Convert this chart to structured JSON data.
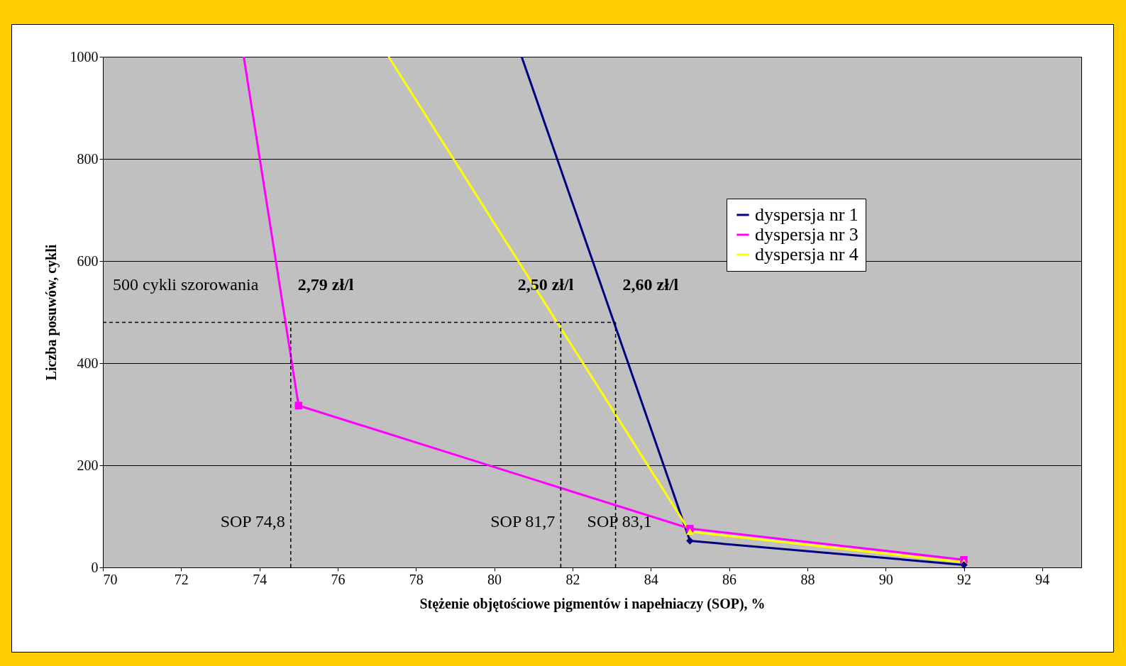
{
  "chart_data": {
    "type": "line",
    "xlabel": "Stężenie objętościowe pigmentów i napełniaczy (SOP), %",
    "ylabel": "Liczba posuwów, cykli",
    "xlim": [
      70,
      95
    ],
    "xticks": [
      70,
      72,
      74,
      76,
      78,
      80,
      82,
      84,
      86,
      88,
      90,
      92,
      94
    ],
    "ylim": [
      0,
      1000
    ],
    "yticks": [
      0,
      200,
      400,
      600,
      800,
      1000
    ],
    "grid": "y",
    "legend": "top right",
    "line_style": "solid",
    "series": [
      {
        "name": "dyspersja nr 1",
        "color": "#000080",
        "marker": "diamond",
        "x": [
          80.7,
          85,
          92
        ],
        "values": [
          1000,
          52,
          5
        ]
      },
      {
        "name": "dyspersja nr 3",
        "color": "#ff00ff",
        "marker": "square",
        "x": [
          73.6,
          75,
          85,
          92
        ],
        "values": [
          1000,
          317,
          76,
          15
        ]
      },
      {
        "name": "dyspersja nr 4",
        "color": "#ffff00",
        "marker": "triangle",
        "x": [
          77.3,
          85,
          92
        ],
        "values": [
          1000,
          70,
          10
        ]
      }
    ],
    "ref_lines": [
      {
        "axis": "y",
        "value": 480,
        "label": "500 cykli szorowania",
        "line_style": "dashed",
        "color": "#000000"
      },
      {
        "axis": "x",
        "value": 74.8,
        "label": "SOP 74,8",
        "line_style": "dashed",
        "color": "#000000"
      },
      {
        "axis": "x",
        "value": 81.7,
        "label": "SOP 81,7",
        "line_style": "dashed",
        "color": "#000000"
      },
      {
        "axis": "x",
        "value": 83.1,
        "label": "SOP 83,1",
        "line_style": "dashed",
        "color": "#000000"
      }
    ],
    "annotations": [
      "2,79 zł/l",
      "2,50 zł/l",
      "2,60 zł/l"
    ]
  }
}
